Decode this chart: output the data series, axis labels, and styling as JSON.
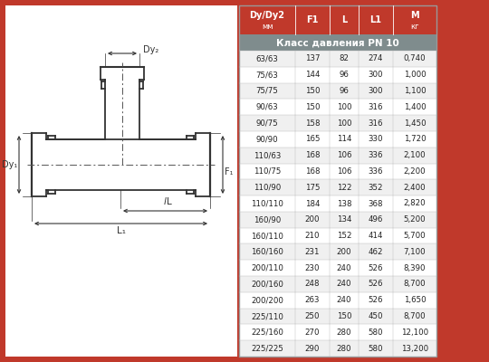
{
  "header_cols": [
    "Dy/Dy2\nмм",
    "F1",
    "L",
    "L1",
    "M\nкг"
  ],
  "subheader": "Класс давления PN 10",
  "rows": [
    [
      "63/63",
      "137",
      "82",
      "274",
      "0,740"
    ],
    [
      "75/63",
      "144",
      "96",
      "300",
      "1,000"
    ],
    [
      "75/75",
      "150",
      "96",
      "300",
      "1,100"
    ],
    [
      "90/63",
      "150",
      "100",
      "316",
      "1,400"
    ],
    [
      "90/75",
      "158",
      "100",
      "316",
      "1,450"
    ],
    [
      "90/90",
      "165",
      "114",
      "330",
      "1,720"
    ],
    [
      "110/63",
      "168",
      "106",
      "336",
      "2,100"
    ],
    [
      "110/75",
      "168",
      "106",
      "336",
      "2,200"
    ],
    [
      "110/90",
      "175",
      "122",
      "352",
      "2,400"
    ],
    [
      "110/110",
      "184",
      "138",
      "368",
      "2,820"
    ],
    [
      "160/90",
      "200",
      "134",
      "496",
      "5,200"
    ],
    [
      "160/110",
      "210",
      "152",
      "414",
      "5,700"
    ],
    [
      "160/160",
      "231",
      "200",
      "462",
      "7,100"
    ],
    [
      "200/110",
      "230",
      "240",
      "526",
      "8,390"
    ],
    [
      "200/160",
      "248",
      "240",
      "526",
      "8,700"
    ],
    [
      "200/200",
      "263",
      "240",
      "526",
      "1,650"
    ],
    [
      "225/110",
      "250",
      "150",
      "450",
      "8,700"
    ],
    [
      "225/160",
      "270",
      "280",
      "580",
      "12,100"
    ],
    [
      "225/225",
      "290",
      "280",
      "580",
      "13,200"
    ]
  ],
  "bg_outer": "#c0392b",
  "bg_table_header": "#c0392b",
  "bg_subheader": "#7f8c8d",
  "text_dark": "#222222",
  "pipe_color": "#333333",
  "dim_color": "#333333"
}
